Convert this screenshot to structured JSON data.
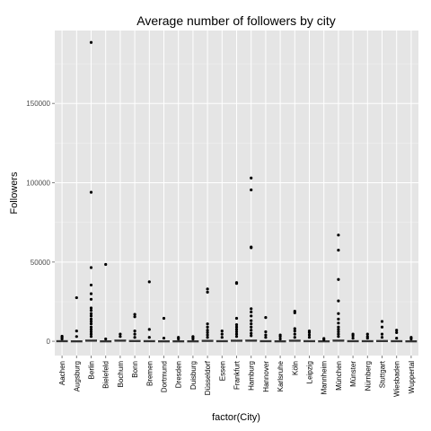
{
  "chart_data": {
    "type": "boxplot",
    "title": "Average number of followers by city",
    "xlabel": "factor(City)",
    "ylabel": "Followers",
    "ylim": [
      -9000,
      196000
    ],
    "yticks": [
      0,
      50000,
      100000,
      150000
    ],
    "ytick_labels": [
      "0",
      "50000",
      "100000",
      "150000"
    ],
    "grid": true,
    "legend": "none",
    "colors": {
      "panel": "#e5e5e5",
      "grid_major": "#ffffff",
      "grid_minor": "#f2f2f2",
      "box": "#333333",
      "points": "#000000"
    },
    "categories": [
      "Aachen",
      "Augsburg",
      "Berlin",
      "Bielefeld",
      "Bochum",
      "Bonn",
      "Bremen",
      "Dortmund",
      "Dresden",
      "Duisburg",
      "Düsseldorf",
      "Essen",
      "Frankfurt",
      "Hamburg",
      "Hannover",
      "Karlsruhe",
      "Köln",
      "Leipzig",
      "Mannheim",
      "München",
      "Münster",
      "Nürnberg",
      "Stuttgart",
      "Wiesbaden",
      "Wuppertal"
    ],
    "boxes": [
      {
        "q1": 0,
        "median": 100,
        "q3": 500
      },
      {
        "q1": 0,
        "median": 100,
        "q3": 400
      },
      {
        "q1": 0,
        "median": 200,
        "q3": 900
      },
      {
        "q1": 0,
        "median": 100,
        "q3": 400
      },
      {
        "q1": 0,
        "median": 200,
        "q3": 900
      },
      {
        "q1": 0,
        "median": 100,
        "q3": 600
      },
      {
        "q1": 0,
        "median": 100,
        "q3": 500
      },
      {
        "q1": 0,
        "median": 100,
        "q3": 400
      },
      {
        "q1": 0,
        "median": 100,
        "q3": 400
      },
      {
        "q1": 0,
        "median": 100,
        "q3": 400
      },
      {
        "q1": 0,
        "median": 200,
        "q3": 700
      },
      {
        "q1": 0,
        "median": 100,
        "q3": 500
      },
      {
        "q1": 0,
        "median": 200,
        "q3": 800
      },
      {
        "q1": 0,
        "median": 200,
        "q3": 900
      },
      {
        "q1": 0,
        "median": 100,
        "q3": 500
      },
      {
        "q1": 0,
        "median": 100,
        "q3": 400
      },
      {
        "q1": 0,
        "median": 200,
        "q3": 800
      },
      {
        "q1": 0,
        "median": 100,
        "q3": 500
      },
      {
        "q1": 0,
        "median": 100,
        "q3": 400
      },
      {
        "q1": 0,
        "median": 200,
        "q3": 900
      },
      {
        "q1": 0,
        "median": 100,
        "q3": 500
      },
      {
        "q1": 0,
        "median": 100,
        "q3": 500
      },
      {
        "q1": 0,
        "median": 100,
        "q3": 600
      },
      {
        "q1": 0,
        "median": 100,
        "q3": 500
      },
      {
        "q1": 0,
        "median": 100,
        "q3": 400
      }
    ],
    "outliers": [
      [
        1500,
        2500,
        3200
      ],
      [
        3000,
        6500,
        27500
      ],
      [
        3000,
        4500,
        6000,
        7500,
        9000,
        11000,
        12500,
        14000,
        16000,
        17500,
        19500,
        21000,
        26500,
        30000,
        35500,
        46500,
        94000,
        188500
      ],
      [
        1500,
        48500
      ],
      [
        3000,
        4500
      ],
      [
        2500,
        4500,
        6500,
        15500,
        17000
      ],
      [
        2500,
        7500,
        37500
      ],
      [
        2000,
        14500
      ],
      [
        1500,
        2500
      ],
      [
        1500,
        2500,
        3000
      ],
      [
        2500,
        4000,
        5500,
        7000,
        9000,
        11000,
        31000,
        33000
      ],
      [
        2500,
        4500,
        6500
      ],
      [
        3000,
        4500,
        6000,
        7500,
        9000,
        10500,
        14500,
        36500,
        37000
      ],
      [
        3500,
        5000,
        7000,
        9000,
        11000,
        13000,
        16000,
        18500,
        20500,
        59000,
        59500,
        95500,
        103000
      ],
      [
        2500,
        4000,
        6000,
        15000
      ],
      [
        1500,
        3000,
        4000
      ],
      [
        2500,
        4500,
        6500,
        8000,
        18000,
        19000
      ],
      [
        2500,
        4000,
        5500,
        6500
      ],
      [
        1000,
        1800
      ],
      [
        3000,
        4500,
        6000,
        7500,
        9000,
        11500,
        14000,
        17500,
        25500,
        39000,
        57500,
        67000
      ],
      [
        2000,
        3500,
        4500
      ],
      [
        2000,
        3000,
        4500
      ],
      [
        2500,
        4500,
        9000,
        12500
      ],
      [
        2000,
        5500,
        7000
      ],
      [
        1500,
        2500
      ]
    ]
  }
}
